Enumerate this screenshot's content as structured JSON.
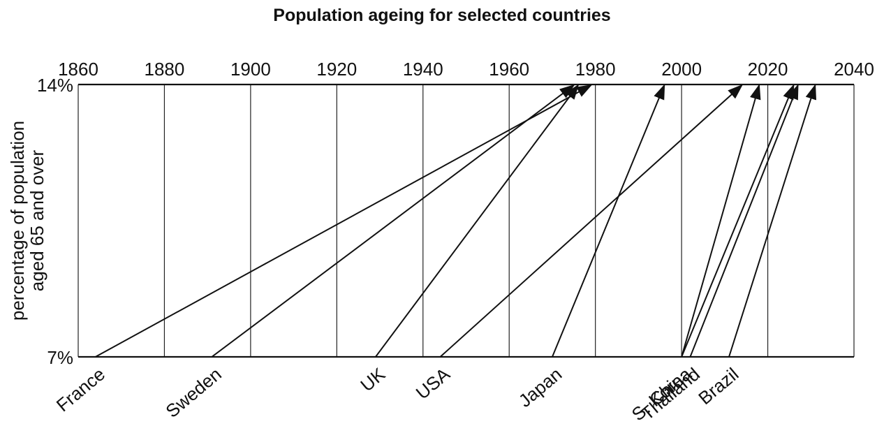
{
  "chart_data": {
    "type": "line",
    "title": "Population ageing for selected countries",
    "xlabel": "",
    "ylabel": [
      "percentage of population",
      "aged 65 and over"
    ],
    "x_axis_position": "top",
    "x_ticks": [
      1860,
      1880,
      1900,
      1920,
      1940,
      1960,
      1980,
      2000,
      2020,
      2040
    ],
    "xlim": [
      1860,
      2040
    ],
    "y_ticks": [
      "7%",
      "14%"
    ],
    "grid": true,
    "series": [
      {
        "name": "France",
        "start_year": 1864,
        "end_year": 1979
      },
      {
        "name": "Sweden",
        "start_year": 1891,
        "end_year": 1975
      },
      {
        "name": "UK",
        "start_year": 1929,
        "end_year": 1976
      },
      {
        "name": "USA",
        "start_year": 1944,
        "end_year": 2014
      },
      {
        "name": "Japan",
        "start_year": 1970,
        "end_year": 1996
      },
      {
        "name": "S. Korea",
        "start_year": 2000,
        "end_year": 2018
      },
      {
        "name": "China",
        "start_year": 2000,
        "end_year": 2026
      },
      {
        "name": "Thailand",
        "start_year": 2002,
        "end_year": 2027
      },
      {
        "name": "Brazil",
        "start_year": 2011,
        "end_year": 2031
      }
    ]
  }
}
